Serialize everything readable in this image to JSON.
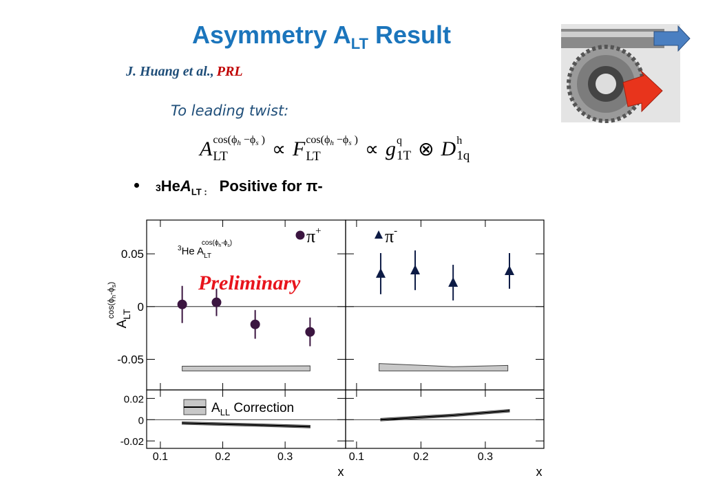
{
  "slide": {
    "title": {
      "text": "Asymmetry A",
      "sub": "LT",
      "rest": " Result"
    },
    "citation": {
      "authors": "J. Huang et al.,",
      "journal": "PRL"
    },
    "note": "To leading twist:",
    "formula": {
      "terms": [
        {
          "base": "A",
          "sub": "LT",
          "sup": [
            "cos(ϕ",
            "h",
            " −ϕ",
            "s",
            " )"
          ]
        },
        {
          "op": "∝"
        },
        {
          "base": "F",
          "sub": "LT",
          "sup": [
            "cos(ϕ",
            "h",
            " −ϕ",
            "s",
            " )"
          ]
        },
        {
          "op": "∝"
        },
        {
          "base": "g",
          "sub": "1T",
          "sup": [
            "q"
          ]
        },
        {
          "op": "⊗"
        },
        {
          "base": "D",
          "sub": "1q",
          "sup": [
            "h"
          ]
        }
      ]
    },
    "bullet": {
      "mass": "3",
      "nucleus": "He ",
      "symbol": "A",
      "symbol_sub": "LT :",
      "text": "Positive for π-"
    }
  },
  "chart_data": [
    {
      "type": "scatter",
      "xlim": [
        0.078,
        0.397
      ],
      "ylim": [
        -0.079,
        0.082
      ],
      "xticks": [
        0.1,
        0.2,
        0.3
      ],
      "yticks": [
        -0.05,
        0,
        0.05
      ],
      "xtick_labels": false,
      "ytick_labels": true,
      "ylabel": {
        "base": "A",
        "sub": "LT",
        "sup": [
          "cos(ϕ",
          "h",
          "-ϕ",
          "s",
          ")"
        ]
      },
      "legend": "upper right",
      "series": [
        {
          "name": "π",
          "name_sup": "+",
          "marker": "circle",
          "color": "#3b1540",
          "x": [
            0.135,
            0.19,
            0.252,
            0.34
          ],
          "values": [
            0.002,
            0.004,
            -0.0169,
            -0.024
          ],
          "errors": [
            0.0176,
            0.013,
            0.0136,
            0.0136
          ]
        }
      ],
      "band": {
        "color": "#c8c8c8",
        "x": [
          0.135,
          0.34
        ],
        "upper": [
          -0.0565,
          -0.0562
        ],
        "lower": [
          -0.061,
          -0.061
        ]
      },
      "annotations": [
        {
          "sup_prefix": "3",
          "text": "He A",
          "sub": "LT",
          "sup": [
            "cos(ϕ",
            "h",
            "-ϕ",
            "s",
            ")"
          ]
        },
        {
          "text": "Preliminary",
          "color": "#e8141c"
        }
      ]
    },
    {
      "type": "scatter",
      "xlim": [
        0.083,
        0.391
      ],
      "ylim": [
        -0.079,
        0.082
      ],
      "xticks": [
        0.1,
        0.2,
        0.3
      ],
      "yticks": [
        -0.05,
        0,
        0.05
      ],
      "xtick_labels": false,
      "ytick_labels": false,
      "legend": "upper left",
      "series": [
        {
          "name": "π",
          "name_sup": "-",
          "marker": "triangle",
          "color": "#0d1b45",
          "x": [
            0.1375,
            0.191,
            0.25,
            0.3375
          ],
          "values": [
            0.0312,
            0.0344,
            0.0227,
            0.0338
          ],
          "errors": [
            0.0195,
            0.0188,
            0.0169,
            0.0169
          ]
        }
      ],
      "band": {
        "color": "#c8c8c8",
        "x": [
          0.135,
          0.25,
          0.335
        ],
        "upper": [
          -0.054,
          -0.057,
          -0.0558
        ],
        "lower": [
          -0.061,
          -0.061,
          -0.061
        ]
      }
    },
    {
      "type": "line",
      "xlim": [
        0.078,
        0.397
      ],
      "ylim": [
        -0.027,
        0.028
      ],
      "xticks": [
        0.1,
        0.2,
        0.3
      ],
      "yticks": [
        -0.02,
        0,
        0.02
      ],
      "xtick_labels": true,
      "ytick_labels": true,
      "xlabel": "x",
      "legend": "upper left",
      "series": [
        {
          "name": "A",
          "name_sub": "LL",
          "name_rest": " Correction",
          "color": "#000000",
          "x": [
            0.135,
            0.252,
            0.34
          ],
          "values": [
            -0.0032,
            -0.005,
            -0.0065
          ]
        }
      ],
      "band": {
        "color": "#c8c8c8",
        "x": [
          0.135,
          0.252,
          0.34
        ],
        "upper": [
          -0.002,
          -0.0038,
          -0.0053
        ],
        "lower": [
          -0.0044,
          -0.0062,
          -0.0077
        ]
      }
    },
    {
      "type": "line",
      "xlim": [
        0.083,
        0.391
      ],
      "ylim": [
        -0.027,
        0.028
      ],
      "xticks": [
        0.1,
        0.2,
        0.3
      ],
      "yticks": [
        -0.02,
        0,
        0.02
      ],
      "xtick_labels": true,
      "ytick_labels": false,
      "xlabel": "x",
      "series": [
        {
          "color": "#000000",
          "x": [
            0.1375,
            0.25,
            0.3375
          ],
          "values": [
            0,
            0.0041,
            0.0084
          ]
        }
      ],
      "band": {
        "color": "#c8c8c8",
        "x": [
          0.1375,
          0.25,
          0.3375
        ],
        "upper": [
          0.0012,
          0.0053,
          0.0096
        ],
        "lower": [
          -0.0012,
          0.0029,
          0.0072
        ]
      }
    }
  ]
}
